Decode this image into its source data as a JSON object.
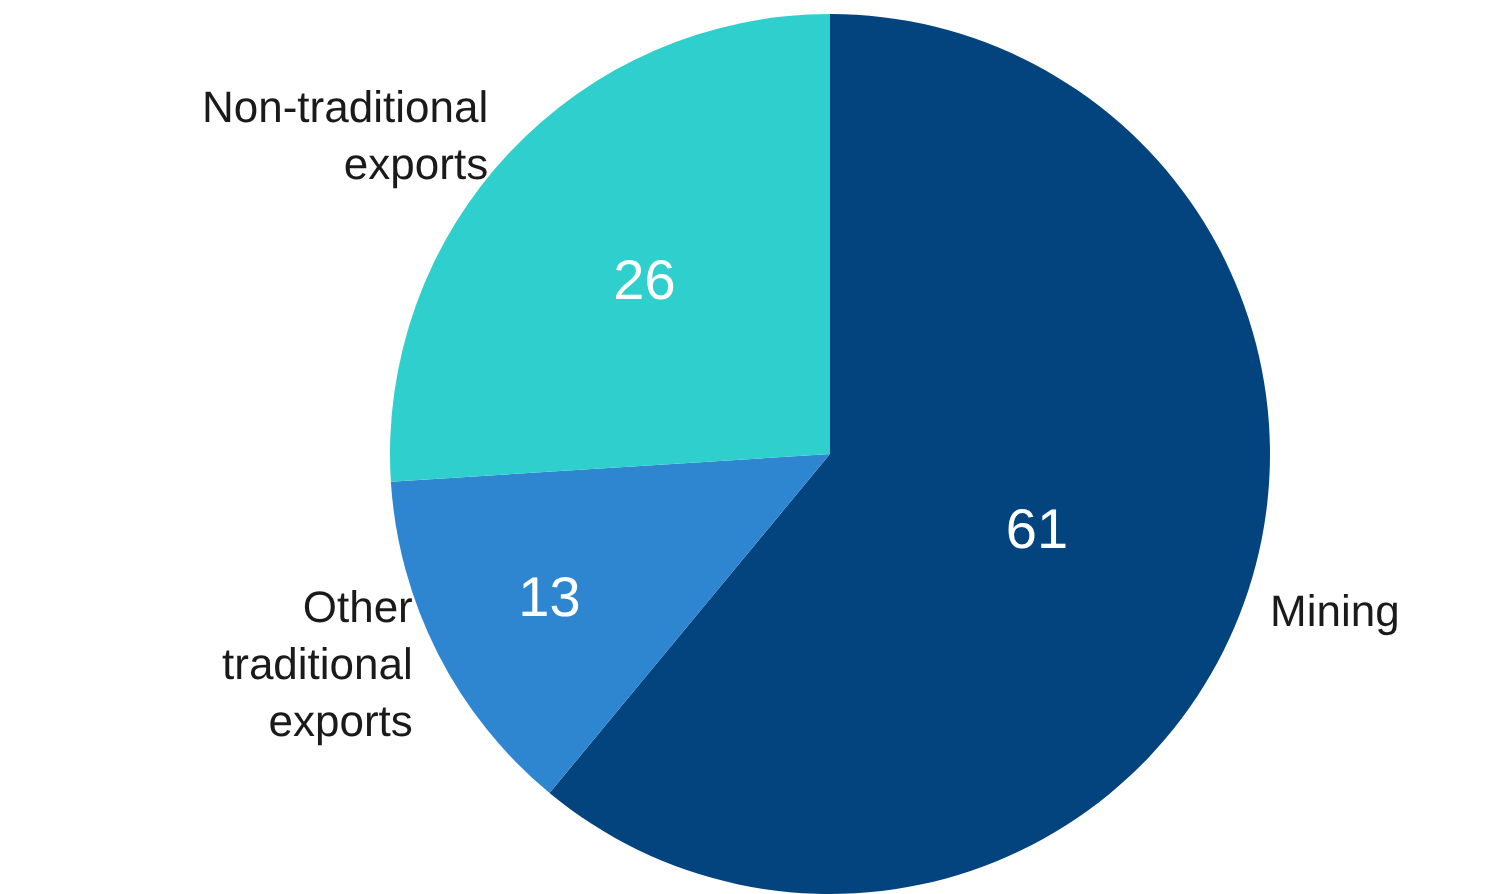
{
  "chart_data": {
    "type": "pie",
    "categories": [
      "Mining",
      "Other traditional exports",
      "Non-traditional exports"
    ],
    "values": [
      61,
      13,
      26
    ],
    "colors": [
      "#03437e",
      "#2e86d0",
      "#2ecfcd"
    ],
    "data_labels": true,
    "legend": false
  }
}
